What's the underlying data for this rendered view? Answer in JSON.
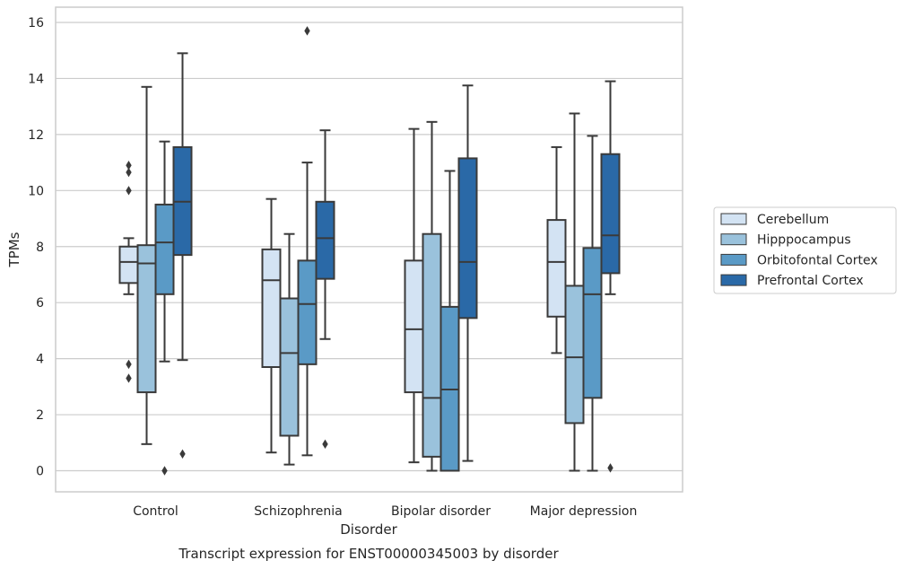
{
  "chart_data": {
    "type": "box",
    "caption": "Transcript expression for ENST00000345003 by disorder",
    "xlabel": "Disorder",
    "ylabel": "TPMs",
    "ylim": [
      -0.75,
      16.5
    ],
    "yticks": [
      0,
      2,
      4,
      6,
      8,
      10,
      12,
      14,
      16
    ],
    "grid": true,
    "legend_position": "right",
    "categories": [
      "Control",
      "Schizophrenia",
      "Bipolar disorder",
      "Major depression"
    ],
    "series": [
      {
        "name": "Cerebellum",
        "color": "#d3e3f3",
        "boxes": [
          {
            "whislo": 6.3,
            "q1": 6.7,
            "med": 7.45,
            "q3": 8.0,
            "whishi": 8.3,
            "fliers": [
              10.9,
              10.65,
              10.0,
              3.8,
              3.3
            ]
          },
          {
            "whislo": 0.65,
            "q1": 3.7,
            "med": 6.8,
            "q3": 7.9,
            "whishi": 9.7,
            "fliers": []
          },
          {
            "whislo": 0.3,
            "q1": 2.8,
            "med": 5.05,
            "q3": 7.5,
            "whishi": 12.2,
            "fliers": []
          },
          {
            "whislo": 4.2,
            "q1": 5.5,
            "med": 7.45,
            "q3": 8.95,
            "whishi": 11.55,
            "fliers": []
          }
        ]
      },
      {
        "name": "Hipppocampus",
        "color": "#9ac2dc",
        "boxes": [
          {
            "whislo": 0.95,
            "q1": 2.8,
            "med": 7.4,
            "q3": 8.05,
            "whishi": 13.7,
            "fliers": []
          },
          {
            "whislo": 0.22,
            "q1": 1.25,
            "med": 4.2,
            "q3": 6.15,
            "whishi": 8.45,
            "fliers": []
          },
          {
            "whislo": 0.0,
            "q1": 0.5,
            "med": 2.6,
            "q3": 8.45,
            "whishi": 12.45,
            "fliers": []
          },
          {
            "whislo": 0.0,
            "q1": 1.7,
            "med": 4.05,
            "q3": 6.6,
            "whishi": 12.75,
            "fliers": []
          }
        ]
      },
      {
        "name": "Orbitofontal Cortex",
        "color": "#5a9ac6",
        "boxes": [
          {
            "whislo": 3.9,
            "q1": 6.3,
            "med": 8.15,
            "q3": 9.5,
            "whishi": 11.75,
            "fliers": [
              0.0
            ]
          },
          {
            "whislo": 0.55,
            "q1": 3.8,
            "med": 5.95,
            "q3": 7.5,
            "whishi": 11.0,
            "fliers": [
              15.7
            ]
          },
          {
            "whislo": 0.0,
            "q1": 0.0,
            "med": 2.9,
            "q3": 5.85,
            "whishi": 10.7,
            "fliers": []
          },
          {
            "whislo": 0.0,
            "q1": 2.6,
            "med": 6.3,
            "q3": 7.95,
            "whishi": 11.95,
            "fliers": []
          }
        ]
      },
      {
        "name": "Prefrontal Cortex",
        "color": "#2a69a7",
        "boxes": [
          {
            "whislo": 3.95,
            "q1": 7.7,
            "med": 9.6,
            "q3": 11.55,
            "whishi": 14.9,
            "fliers": [
              0.6
            ]
          },
          {
            "whislo": 4.7,
            "q1": 6.85,
            "med": 8.3,
            "q3": 9.6,
            "whishi": 12.15,
            "fliers": [
              0.95
            ]
          },
          {
            "whislo": 0.35,
            "q1": 5.45,
            "med": 7.45,
            "q3": 11.15,
            "whishi": 13.75,
            "fliers": []
          },
          {
            "whislo": 6.3,
            "q1": 7.05,
            "med": 8.4,
            "q3": 11.3,
            "whishi": 13.9,
            "fliers": [
              0.1
            ]
          }
        ]
      }
    ]
  }
}
